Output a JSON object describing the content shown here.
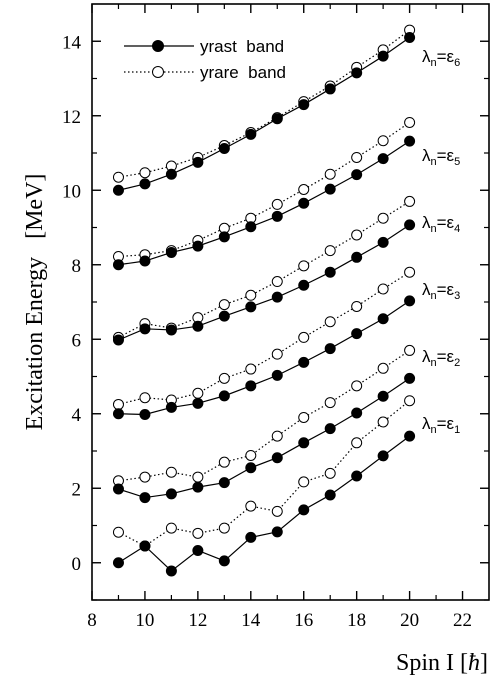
{
  "chart_data": {
    "type": "line",
    "xlabel": "Spin I [",
    "xlabel_hbar": "ħ",
    "xlabel_close": "]",
    "ylabel": "Excitation Energy   [MeV]",
    "xlim": [
      8,
      23
    ],
    "ylim": [
      -1,
      15
    ],
    "xticks": [
      8,
      10,
      12,
      14,
      16,
      18,
      20,
      22
    ],
    "yticks": [
      0,
      2,
      4,
      6,
      8,
      10,
      12,
      14
    ],
    "legend": {
      "position": "top-left",
      "entries": [
        {
          "label": "yrast  band",
          "style": "solid-filled"
        },
        {
          "label": "yrare  band",
          "style": "dotted-open"
        }
      ]
    },
    "x": [
      9,
      10,
      11,
      12,
      13,
      14,
      15,
      16,
      17,
      18,
      19,
      20
    ],
    "groups": [
      {
        "label_main": "λ",
        "label_sub": "n",
        "label_eq": "=ε",
        "label_sub2": "1",
        "label_y": 3.75,
        "yrast": [
          0.0,
          0.45,
          -0.22,
          0.33,
          0.05,
          0.68,
          0.83,
          1.42,
          1.82,
          2.33,
          2.87,
          3.4
        ],
        "yrare": [
          0.82,
          0.45,
          0.93,
          0.79,
          0.93,
          1.52,
          1.38,
          2.17,
          2.4,
          3.22,
          3.78,
          4.35
        ]
      },
      {
        "label_main": "λ",
        "label_sub": "n",
        "label_eq": "=ε",
        "label_sub2": "2",
        "label_y": 5.55,
        "yrast": [
          1.98,
          1.75,
          1.85,
          2.03,
          2.15,
          2.55,
          2.82,
          3.22,
          3.6,
          4.02,
          4.47,
          4.95
        ],
        "yrare": [
          2.2,
          2.3,
          2.43,
          2.3,
          2.7,
          2.88,
          3.4,
          3.9,
          4.3,
          4.75,
          5.22,
          5.7
        ]
      },
      {
        "label_main": "λ",
        "label_sub": "n",
        "label_eq": "=ε",
        "label_sub2": "3",
        "label_y": 7.35,
        "yrast": [
          4.0,
          3.98,
          4.17,
          4.28,
          4.48,
          4.75,
          5.03,
          5.38,
          5.75,
          6.15,
          6.55,
          7.03
        ],
        "yrare": [
          4.25,
          4.43,
          4.37,
          4.55,
          4.95,
          5.2,
          5.6,
          6.05,
          6.47,
          6.88,
          7.35,
          7.8
        ]
      },
      {
        "label_main": "λ",
        "label_sub": "n",
        "label_eq": "=ε",
        "label_sub2": "4",
        "label_y": 9.15,
        "yrast": [
          5.98,
          6.28,
          6.25,
          6.35,
          6.62,
          6.87,
          7.13,
          7.45,
          7.8,
          8.2,
          8.6,
          9.07
        ],
        "yrare": [
          6.05,
          6.42,
          6.3,
          6.58,
          6.93,
          7.18,
          7.55,
          7.97,
          8.38,
          8.8,
          9.25,
          9.7
        ]
      },
      {
        "label_main": "λ",
        "label_sub": "n",
        "label_eq": "=ε",
        "label_sub2": "5",
        "label_y": 10.95,
        "yrast": [
          8.0,
          8.1,
          8.33,
          8.5,
          8.75,
          9.02,
          9.3,
          9.65,
          10.03,
          10.42,
          10.85,
          11.32
        ],
        "yrare": [
          8.22,
          8.27,
          8.38,
          8.65,
          8.98,
          9.25,
          9.62,
          10.02,
          10.43,
          10.88,
          11.33,
          11.82
        ]
      },
      {
        "label_main": "λ",
        "label_sub": "n",
        "label_eq": "=ε",
        "label_sub2": "6",
        "label_y": 13.6,
        "yrast": [
          10.0,
          10.17,
          10.43,
          10.75,
          11.12,
          11.5,
          11.92,
          12.3,
          12.72,
          13.15,
          13.6,
          14.1
        ],
        "yrare": [
          10.35,
          10.47,
          10.65,
          10.88,
          11.2,
          11.55,
          11.95,
          12.38,
          12.8,
          13.3,
          13.77,
          14.3
        ]
      }
    ]
  }
}
